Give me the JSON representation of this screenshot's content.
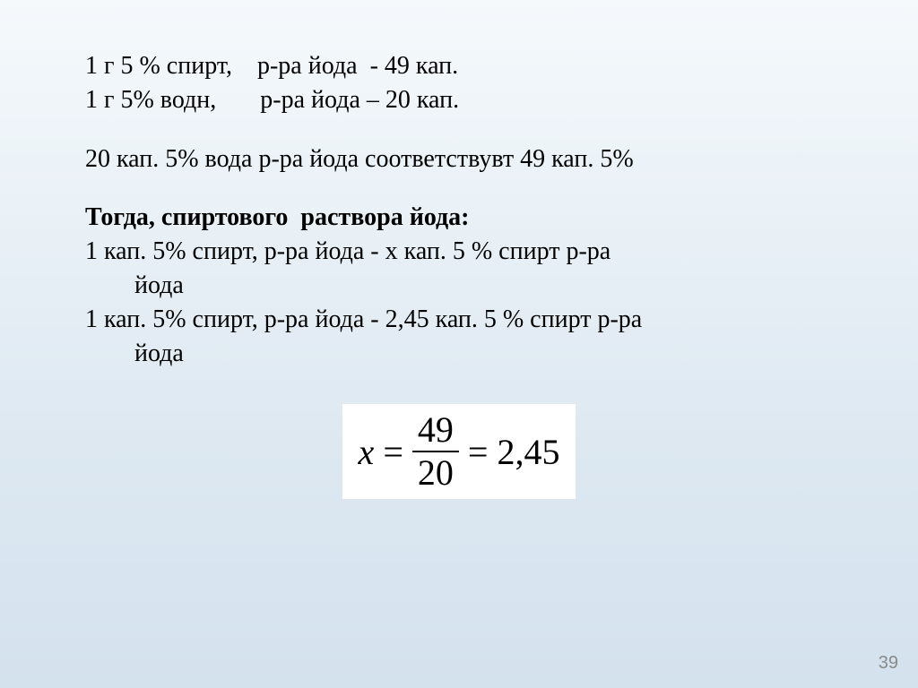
{
  "background": {
    "gradient_top": "#f5f9fc",
    "gradient_bottom": "#d4e2ee"
  },
  "text_color": "#000000",
  "body_fontsize_pt": 21,
  "font_family": "Times New Roman",
  "lines": {
    "l1": "1 г 5 % спирт,    р-ра йода  - 49 кап.",
    "l2": "1 г 5% водн,       р-ра йода – 20 кап.",
    "l3": "20 кап. 5% вода р-ра йода соответствувт 49 кап. 5%",
    "l4": "Тогда, спиртового  раствора йода:",
    "l5a": "1 кап. 5% спирт, р-ра йода  - х кап. 5 % спирт р-ра",
    "l5b": "йода",
    "l6a": "1 кап. 5% спирт, р-ра йода  - 2,45 кап. 5 % спирт р-ра",
    "l6b": "йода"
  },
  "formula": {
    "lhs_var": "x",
    "eq": "=",
    "numerator": "49",
    "denominator": "20",
    "result": "2,45",
    "box_bg": "#ffffff",
    "fontsize_pt": 30
  },
  "page_number": "39",
  "page_number_color": "#8a8a8a"
}
